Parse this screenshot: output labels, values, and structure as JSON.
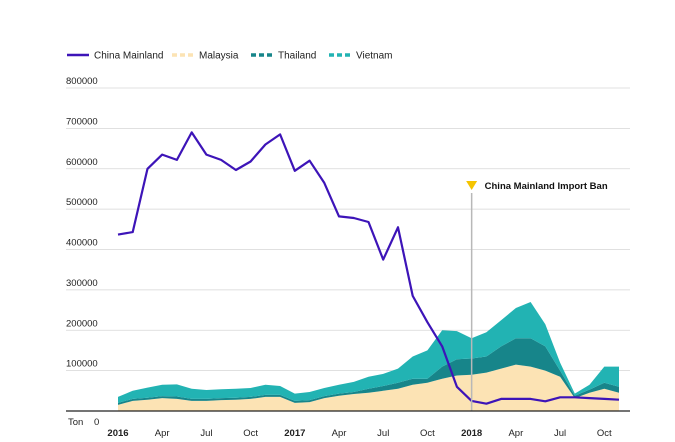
{
  "chart_data": {
    "type": "area",
    "unit_label": "Ton",
    "ylim": [
      0,
      800000
    ],
    "yticks": [
      0,
      100000,
      200000,
      300000,
      400000,
      500000,
      600000,
      700000,
      800000
    ],
    "ytick_labels": [
      "0",
      "100000",
      "200000",
      "300000",
      "400000",
      "500000",
      "600000",
      "700000",
      "800000"
    ],
    "x": [
      0,
      1,
      2,
      3,
      4,
      5,
      6,
      7,
      8,
      9,
      10,
      11,
      12,
      13,
      14,
      15,
      16,
      17,
      18,
      19,
      20,
      21,
      22,
      23,
      24,
      25,
      26,
      27,
      28,
      29,
      30,
      31,
      32,
      33,
      34
    ],
    "xlim": [
      0,
      34
    ],
    "xticks": [
      {
        "x": 0,
        "label": "2016",
        "year": true
      },
      {
        "x": 3,
        "label": "Apr",
        "year": false
      },
      {
        "x": 6,
        "label": "Jul",
        "year": false
      },
      {
        "x": 9,
        "label": "Oct",
        "year": false
      },
      {
        "x": 12,
        "label": "2017",
        "year": true
      },
      {
        "x": 15,
        "label": "Apr",
        "year": false
      },
      {
        "x": 18,
        "label": "Jul",
        "year": false
      },
      {
        "x": 21,
        "label": "Oct",
        "year": false
      },
      {
        "x": 24,
        "label": "2018",
        "year": true
      },
      {
        "x": 27,
        "label": "Apr",
        "year": false
      },
      {
        "x": 30,
        "label": "Jul",
        "year": false
      },
      {
        "x": 33,
        "label": "Oct",
        "year": false
      }
    ],
    "series": [
      {
        "name": "China Mainland",
        "kind": "line",
        "color": "#3d14b8",
        "values": [
          437000,
          443000,
          600000,
          635000,
          622000,
          690000,
          635000,
          622000,
          597000,
          618000,
          660000,
          685000,
          595000,
          620000,
          565000,
          482000,
          478000,
          468000,
          375000,
          455000,
          285000,
          220000,
          160000,
          60000,
          25000,
          18000,
          30000,
          30000,
          30000,
          24000,
          34000,
          34000,
          32000,
          30000,
          28000
        ]
      },
      {
        "name": "Malaysia",
        "kind": "area",
        "color": "#fce3b4",
        "values": [
          15000,
          25000,
          28000,
          32000,
          30000,
          25000,
          25000,
          27000,
          28000,
          30000,
          35000,
          35000,
          20000,
          22000,
          32000,
          38000,
          42000,
          45000,
          50000,
          55000,
          65000,
          70000,
          80000,
          88000,
          90000,
          95000,
          105000,
          115000,
          110000,
          100000,
          85000,
          32000,
          45000,
          55000,
          45000
        ]
      },
      {
        "name": "Thailand",
        "kind": "area",
        "color": "#17858a",
        "values": [
          5000,
          5000,
          5000,
          5000,
          6000,
          5000,
          5000,
          5000,
          5000,
          5000,
          5000,
          5000,
          5000,
          5000,
          5000,
          5000,
          5000,
          10000,
          12000,
          15000,
          15000,
          10000,
          30000,
          40000,
          40000,
          40000,
          55000,
          65000,
          70000,
          60000,
          15000,
          6000,
          8000,
          15000,
          15000
        ]
      },
      {
        "name": "Vietnam",
        "kind": "area",
        "color": "#22b3b3",
        "values": [
          15000,
          20000,
          25000,
          28000,
          30000,
          25000,
          22000,
          22000,
          22000,
          22000,
          25000,
          22000,
          18000,
          20000,
          20000,
          22000,
          25000,
          30000,
          30000,
          35000,
          55000,
          70000,
          90000,
          70000,
          50000,
          60000,
          65000,
          75000,
          90000,
          55000,
          20000,
          5000,
          12000,
          40000,
          50000
        ]
      }
    ],
    "annotations": [
      {
        "x": 24,
        "label": "China Mainland Import Ban",
        "marker_color": "#f5c400",
        "line_color": "#b8b8b8"
      }
    ],
    "legend_position": "top-left",
    "grid": true
  }
}
